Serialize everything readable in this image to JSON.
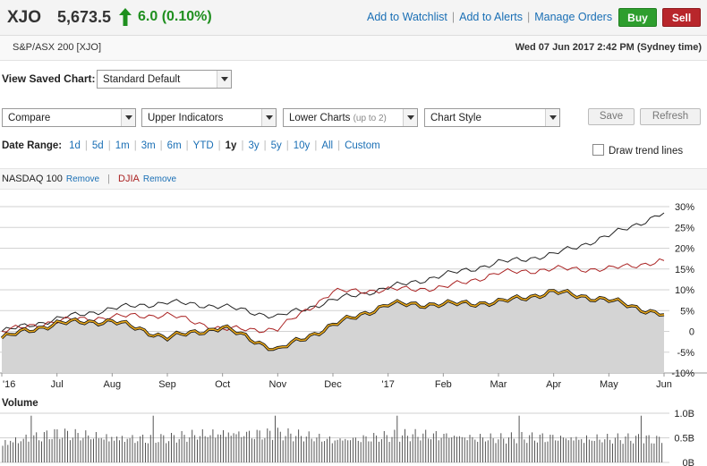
{
  "header": {
    "ticker": "XJO",
    "price": "5,673.5",
    "change": "6.0 (0.10%)",
    "watchlist_link": "Add to Watchlist",
    "alerts_link": "Add to Alerts",
    "orders_link": "Manage Orders",
    "buy_label": "Buy",
    "sell_label": "Sell",
    "index_name": "S&P/ASX 200 [XJO]",
    "datetime": "Wed 07 Jun 2017 2:42 PM (Sydney time)"
  },
  "controls": {
    "saved_chart_label": "View Saved Chart:",
    "saved_chart_value": "Standard Default",
    "compare": "Compare",
    "upper_indicators": "Upper Indicators",
    "lower_charts": "Lower Charts",
    "lower_charts_hint": "(up to 2)",
    "chart_style": "Chart Style",
    "save": "Save",
    "refresh": "Refresh",
    "date_range_label": "Date Range:",
    "date_ranges": [
      "1d",
      "5d",
      "1m",
      "3m",
      "6m",
      "YTD",
      "1y",
      "3y",
      "5y",
      "10y",
      "All",
      "Custom"
    ],
    "active_range": "1y",
    "draw_trend_lines": "Draw trend lines"
  },
  "comparisons": [
    {
      "name": "NASDAQ 100",
      "remove": "Remove",
      "color": "#222222"
    },
    {
      "name": "DJIA",
      "remove": "Remove",
      "color": "#aa2222"
    }
  ],
  "colors": {
    "xjo_line": "#e8a81d",
    "area_fill": "#d4d4d4",
    "up": "#1f8f1f",
    "link": "#1a6fb5"
  },
  "chart_data": {
    "type": "line",
    "x": [
      "'16",
      "Jul",
      "Aug",
      "Sep",
      "Oct",
      "Nov",
      "Dec",
      "'17",
      "Feb",
      "Mar",
      "Apr",
      "May",
      "Jun"
    ],
    "ylim": [
      -10,
      30
    ],
    "y_ticks": [
      "30%",
      "25%",
      "20%",
      "15%",
      "10%",
      "5%",
      "0",
      "-5%",
      "-10%"
    ],
    "series": [
      {
        "name": "NASDAQ 100",
        "values": [
          0,
          3,
          5.5,
          7,
          6,
          3.5,
          7.5,
          10.5,
          13.5,
          16.5,
          18.5,
          23,
          28.5
        ]
      },
      {
        "name": "DJIA",
        "values": [
          0,
          2.5,
          3.5,
          4,
          0.5,
          0.5,
          9.5,
          10,
          10.5,
          14,
          15,
          15,
          17
        ]
      },
      {
        "name": "XJO",
        "values": [
          -1.5,
          2,
          2.5,
          -1.5,
          1,
          -4.5,
          1.5,
          6.5,
          6.5,
          7,
          9.5,
          7.5,
          4
        ]
      }
    ],
    "volume": {
      "y_ticks": [
        "1.0B",
        "0.5B",
        "0B"
      ],
      "values": [
        0.45,
        0.6,
        0.55,
        0.5,
        0.65,
        0.6,
        0.5,
        0.55,
        0.6,
        0.5,
        0.55,
        0.5,
        0.5
      ]
    }
  }
}
